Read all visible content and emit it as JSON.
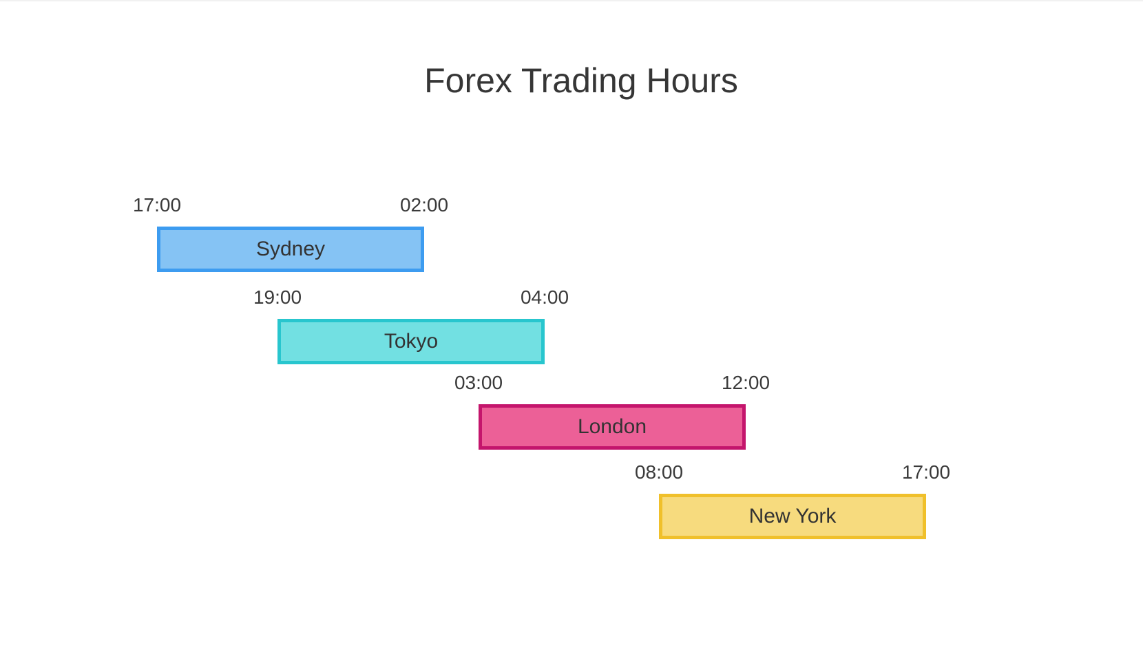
{
  "page": {
    "background": "#ffffff",
    "top_edge_line_color": "#f1f1f1"
  },
  "chart_data": {
    "type": "bar",
    "subtype": "gantt-timeline",
    "title": "Forex Trading Hours",
    "title_color": "#363636",
    "text_color": "#3a3a3a",
    "xlabel": "",
    "ylabel": "",
    "grid": false,
    "legend": false,
    "categories": [
      "Sydney",
      "Tokyo",
      "London",
      "New York"
    ],
    "sessions": [
      {
        "name": "Sydney",
        "start": "17:00",
        "end": "02:00",
        "fill": "#85C3F4",
        "border": "#3D9CF0"
      },
      {
        "name": "Tokyo",
        "start": "19:00",
        "end": "04:00",
        "fill": "#72E0E2",
        "border": "#28C6CE"
      },
      {
        "name": "London",
        "start": "03:00",
        "end": "12:00",
        "fill": "#EC6097",
        "border": "#C4156C"
      },
      {
        "name": "New York",
        "start": "08:00",
        "end": "17:00",
        "fill": "#F7DB7E",
        "border": "#F0C02B"
      }
    ]
  }
}
